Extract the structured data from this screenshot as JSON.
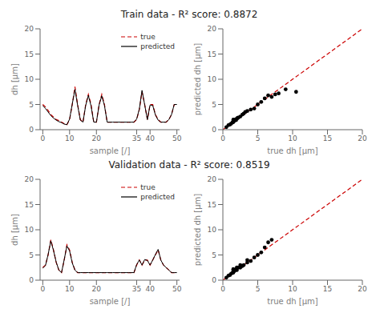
{
  "chart_data": [
    {
      "type": "line",
      "title": "Train data - R² score: 0.8872",
      "x": [
        0,
        1,
        2,
        3,
        4,
        5,
        6,
        7,
        8,
        9,
        10,
        11,
        12,
        13,
        14,
        15,
        16,
        17,
        18,
        19,
        20,
        21,
        22,
        23,
        24,
        25,
        26,
        27,
        28,
        29,
        30,
        31,
        32,
        33,
        34,
        35,
        36,
        37,
        38,
        39,
        40,
        41,
        42,
        43,
        44,
        45,
        46,
        47,
        48,
        49,
        50
      ],
      "series": [
        {
          "name": "true",
          "color": "#cc0000",
          "line_style": "dashed",
          "values": [
            5,
            4.5,
            3.8,
            3.0,
            2.5,
            2.0,
            1.8,
            1.5,
            1.2,
            1.0,
            2.0,
            5.0,
            8.5,
            5.0,
            2.0,
            1.5,
            5.0,
            7.0,
            5.0,
            1.5,
            1.5,
            5.0,
            7.0,
            5.0,
            1.5,
            1.5,
            1.5,
            1.5,
            1.5,
            1.5,
            1.5,
            1.5,
            1.5,
            1.5,
            1.5,
            2.0,
            4.0,
            7.5,
            5.0,
            2.0,
            5.0,
            5.0,
            3.0,
            2.0,
            1.5,
            1.5,
            1.5,
            2.0,
            3.0,
            5.0,
            5.0
          ]
        },
        {
          "name": "predicted",
          "color": "#000000",
          "line_style": "solid",
          "values": [
            4.8,
            4.2,
            3.5,
            2.8,
            2.3,
            1.9,
            1.6,
            1.4,
            1.1,
            1.0,
            2.1,
            5.1,
            8.0,
            4.8,
            1.9,
            1.5,
            4.8,
            6.8,
            4.7,
            1.5,
            1.5,
            4.9,
            6.7,
            4.8,
            1.5,
            1.5,
            1.5,
            1.5,
            1.5,
            1.5,
            1.5,
            1.5,
            1.5,
            1.5,
            1.5,
            2.1,
            4.1,
            7.8,
            4.9,
            2.0,
            4.9,
            4.8,
            2.9,
            1.9,
            1.5,
            1.5,
            1.5,
            2.0,
            3.0,
            5.0,
            5.0
          ]
        }
      ],
      "xlim": [
        -1,
        51
      ],
      "xticks": [
        0,
        10,
        20,
        35,
        40,
        50
      ],
      "ylim": [
        0,
        20
      ],
      "yticks": [
        0,
        5,
        10,
        15,
        20
      ],
      "xlabel": "sample [/]",
      "ylabel": "dh [μm]",
      "legend": "upper right",
      "grid": false
    },
    {
      "type": "scatter",
      "x": [
        0.5,
        0.8,
        1.0,
        1.2,
        1.4,
        1.5,
        1.5,
        1.5,
        1.6,
        1.8,
        1.9,
        2.0,
        2.1,
        2.2,
        2.5,
        2.8,
        3.0,
        3.2,
        3.5,
        4.0,
        4.5,
        5.0,
        5.5,
        6.0,
        6.5,
        7.0,
        7.5,
        8.0,
        9.0,
        10.5
      ],
      "series": [
        {
          "type": "line",
          "color": "#cc0000",
          "line_style": "dashed",
          "x": [
            0,
            20
          ],
          "values": [
            0,
            20
          ]
        },
        {
          "type": "scatter",
          "color": "#000000",
          "marker": "o",
          "values": [
            0.5,
            0.9,
            1.0,
            1.2,
            1.5,
            1.5,
            1.6,
            2.0,
            1.7,
            2.0,
            1.9,
            2.2,
            2.3,
            2.4,
            2.6,
            3.0,
            3.2,
            3.5,
            3.7,
            4.0,
            4.2,
            5.0,
            5.5,
            6.2,
            6.8,
            6.5,
            7.0,
            7.2,
            8.0,
            7.5
          ]
        }
      ],
      "xlim": [
        0,
        20
      ],
      "xticks": [
        0,
        5,
        10,
        15,
        20
      ],
      "ylim": [
        0,
        20
      ],
      "yticks": [
        0,
        5,
        10,
        15,
        20
      ],
      "xlabel": "true dh [μm]",
      "ylabel": "predicted dh [μm]",
      "grid": false
    },
    {
      "type": "line",
      "title": "Validation data - R² score: 0.8519",
      "x": [
        0,
        1,
        2,
        3,
        4,
        5,
        6,
        7,
        8,
        9,
        10,
        11,
        12,
        13,
        14,
        15,
        16,
        17,
        18,
        19,
        20,
        21,
        22,
        23,
        24,
        25,
        26,
        27,
        28,
        29,
        30,
        31,
        32,
        33,
        34,
        35,
        36,
        37,
        38,
        39,
        40,
        41,
        42,
        43,
        44,
        45,
        46,
        47,
        48,
        49,
        50
      ],
      "series": [
        {
          "name": "true",
          "color": "#cc0000",
          "line_style": "dashed",
          "values": [
            2.5,
            3.0,
            5.0,
            8.0,
            6.0,
            3.5,
            2.0,
            1.5,
            4.0,
            7.0,
            6.0,
            3.5,
            2.0,
            1.5,
            1.5,
            1.5,
            1.5,
            1.5,
            1.5,
            1.5,
            1.5,
            1.5,
            1.5,
            1.5,
            1.5,
            1.5,
            1.5,
            1.5,
            1.5,
            1.5,
            1.5,
            1.5,
            1.5,
            1.5,
            1.5,
            3.0,
            4.0,
            3.0,
            4.0,
            4.0,
            3.0,
            4.0,
            5.0,
            6.0,
            4.0,
            3.0,
            2.5,
            2.0,
            1.5,
            1.5,
            1.5
          ]
        },
        {
          "name": "predicted",
          "color": "#000000",
          "line_style": "solid",
          "values": [
            2.4,
            2.9,
            5.1,
            7.8,
            5.9,
            3.6,
            2.0,
            1.5,
            4.1,
            6.8,
            5.8,
            3.4,
            2.0,
            1.5,
            1.5,
            1.5,
            1.5,
            1.5,
            1.5,
            1.5,
            1.5,
            1.5,
            1.5,
            1.5,
            1.5,
            1.5,
            1.5,
            1.5,
            1.5,
            1.5,
            1.5,
            1.5,
            1.5,
            1.5,
            1.5,
            3.1,
            4.0,
            3.0,
            4.1,
            3.9,
            3.0,
            4.0,
            5.1,
            6.1,
            4.0,
            3.0,
            2.5,
            2.0,
            1.5,
            1.5,
            1.5
          ]
        }
      ],
      "xlim": [
        -1,
        51
      ],
      "xticks": [
        0,
        10,
        20,
        35,
        40,
        50
      ],
      "ylim": [
        0,
        20
      ],
      "yticks": [
        0,
        5,
        10,
        15,
        20
      ],
      "xlabel": "sample [/]",
      "ylabel": "dh [μm]",
      "legend": "upper right",
      "grid": false
    },
    {
      "type": "scatter",
      "x": [
        0.5,
        0.8,
        1.0,
        1.2,
        1.4,
        1.5,
        1.5,
        1.5,
        1.5,
        1.6,
        1.8,
        2.0,
        2.0,
        2.2,
        2.5,
        2.5,
        2.8,
        3.0,
        3.5,
        3.5,
        4.0,
        4.5,
        5.0,
        5.5,
        6.0,
        6.5,
        7.0
      ],
      "series": [
        {
          "type": "line",
          "color": "#cc0000",
          "line_style": "dashed",
          "x": [
            0,
            20
          ],
          "values": [
            0,
            20
          ]
        },
        {
          "type": "scatter",
          "color": "#000000",
          "marker": "o",
          "values": [
            0.5,
            0.9,
            1.0,
            1.3,
            1.5,
            1.5,
            1.6,
            2.0,
            2.2,
            1.8,
            2.0,
            2.0,
            2.5,
            2.5,
            2.5,
            3.0,
            2.8,
            3.0,
            3.5,
            4.0,
            3.8,
            4.5,
            5.0,
            5.5,
            6.5,
            7.5,
            8.0
          ]
        }
      ],
      "xlim": [
        0,
        20
      ],
      "xticks": [
        0,
        5,
        10,
        15,
        20
      ],
      "ylim": [
        0,
        20
      ],
      "yticks": [
        0,
        5,
        10,
        15,
        20
      ],
      "xlabel": "true dh [μm]",
      "ylabel": "predicted dh [μm]",
      "grid": false
    }
  ]
}
